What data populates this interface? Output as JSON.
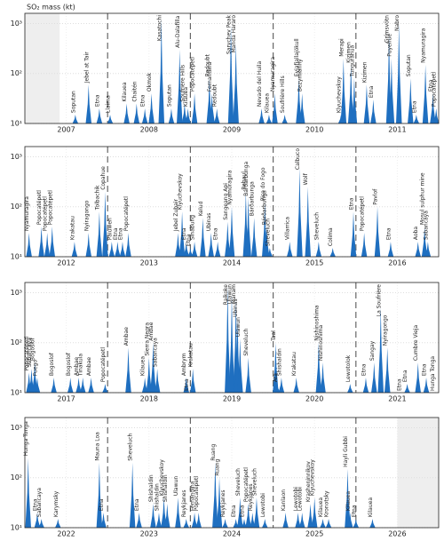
{
  "chart_data": [
    {
      "type": "area",
      "y_label": "SO₂ mass (kt)",
      "color": "#1f6fc0",
      "log_y": true,
      "grid": true,
      "xlim": [
        2007,
        2012
      ],
      "ylim": [
        10,
        1600
      ],
      "yticks": [
        {
          "value": 10,
          "label": "10¹"
        },
        {
          "value": 100,
          "label": "10²"
        },
        {
          "value": 1000,
          "label": "10³"
        }
      ],
      "xticks": [
        {
          "value": 2007.5,
          "label": "2007"
        },
        {
          "value": 2008.5,
          "label": "2008"
        },
        {
          "value": 2009.5,
          "label": "2009"
        },
        {
          "value": 2010.5,
          "label": "2010"
        },
        {
          "value": 2011.5,
          "label": "2011"
        }
      ],
      "year_lines": [
        2008,
        2009,
        2010,
        2011
      ],
      "shaded": [
        2007,
        2007.42
      ],
      "x": [
        2007.61,
        2007.77,
        2007.9,
        2008.03,
        2008.23,
        2008.35,
        2008.45,
        2008.53,
        2008.65,
        2008.77,
        2008.87,
        2008.93,
        2008.97,
        2009.05,
        2009.23,
        2009.26,
        2009.32,
        2009.49,
        2009.55,
        2009.86,
        2009.95,
        2010.02,
        2010.14,
        2010.31,
        2010.35,
        2010.82,
        2010.85,
        2010.94,
        2010.98,
        2011.13,
        2011.21,
        2011.4,
        2011.43,
        2011.52,
        2011.66,
        2011.73,
        2011.84,
        2011.93,
        2011.97
      ],
      "values": [
        15,
        60,
        20,
        15,
        25,
        25,
        20,
        40,
        1200,
        20,
        300,
        25,
        20,
        40,
        80,
        40,
        20,
        900,
        400,
        20,
        15,
        40,
        15,
        80,
        40,
        15,
        200,
        150,
        80,
        60,
        30,
        600,
        200,
        1000,
        80,
        15,
        150,
        40,
        20
      ],
      "labels": [
        "Soputan",
        "Jebel at Tair",
        "Etna",
        "Llaima",
        "Kilauea",
        "Chaitén",
        "Etna",
        "Okmok",
        "Kasatochi",
        "Soputan",
        "Alu-Dalafilla",
        "Soufrière Hills",
        "Kilauea",
        "Popocatépetl",
        "Redoubt",
        "Fernandina",
        "Redoubt",
        "Sarychev Peak",
        "Manda Hararo",
        "Nevado del Huila",
        "Kilauea",
        "Nyamuragira",
        "Soufrière Hills",
        "Eyjafjallajökull",
        "Bezymianny",
        "Klyuchevskoy",
        "Merapi",
        "Kizimen",
        "Tungurahua",
        "Kizimen",
        "Etna",
        "Grímsvötn",
        "Puyehue",
        "Nabro",
        "Soputan",
        "Etna",
        "Nyamuragira",
        "Etna",
        "Popocatépetl"
      ]
    },
    {
      "type": "area",
      "color": "#1f6fc0",
      "log_y": true,
      "grid": true,
      "xlim": [
        2012,
        2017
      ],
      "ylim": [
        10,
        1600
      ],
      "yticks": [
        {
          "value": 10,
          "label": "10¹"
        },
        {
          "value": 100,
          "label": "10²"
        },
        {
          "value": 1000,
          "label": "10³"
        }
      ],
      "xticks": [
        {
          "value": 2012.5,
          "label": "2012"
        },
        {
          "value": 2013.5,
          "label": "2013"
        },
        {
          "value": 2014.5,
          "label": "2014"
        },
        {
          "value": 2015.5,
          "label": "2015"
        },
        {
          "value": 2016.5,
          "label": "2016"
        }
      ],
      "year_lines": [
        2013,
        2014,
        2015,
        2016
      ],
      "x": [
        2012.05,
        2012.2,
        2012.27,
        2012.33,
        2012.6,
        2012.77,
        2012.9,
        2012.97,
        2013.05,
        2013.12,
        2013.18,
        2013.25,
        2013.85,
        2013.9,
        2013.95,
        2014.0,
        2014.05,
        2014.15,
        2014.25,
        2014.33,
        2014.45,
        2014.5,
        2014.67,
        2014.7,
        2014.77,
        2014.9,
        2014.92,
        2014.96,
        2015.2,
        2015.32,
        2015.42,
        2015.55,
        2015.72,
        2015.97,
        2016.1,
        2016.26,
        2016.42,
        2016.75,
        2016.83,
        2016.87
      ],
      "values": [
        30,
        40,
        30,
        40,
        20,
        30,
        80,
        200,
        20,
        20,
        20,
        30,
        30,
        80,
        20,
        15,
        20,
        60,
        30,
        20,
        50,
        100,
        200,
        150,
        60,
        120,
        40,
        15,
        20,
        600,
        250,
        20,
        15,
        80,
        30,
        100,
        20,
        20,
        40,
        20
      ],
      "labels": [
        "Nyamuragira",
        "Popocatépetl",
        "Popocatépetl",
        "Popocatépetl",
        "Krakatau",
        "Nyiragongo",
        "Tolbachik",
        "Copahue",
        "Paluweh",
        "Etna",
        "Etna",
        "Popocatépetl",
        "Jebel Zubair",
        "Klyuchevskoy",
        "Etna",
        "Etna",
        "Sinabung",
        "Kelud",
        "Ubinas",
        "Etna",
        "Sangeang Api",
        "Nyamuragira",
        "Rabaul",
        "Bárðarbunga",
        "Bárðarbunga",
        "Pico do Fogo",
        "Bárðarbunga",
        "Sheveluch",
        "Villarrica",
        "Calbuco",
        "Wolf",
        "Sheveluch",
        "Colima",
        "Etna",
        "Popocatépetl",
        "Pavlof",
        "Etna",
        "Aoba",
        "Mosul sulphur mine",
        "Sabancaya"
      ]
    },
    {
      "type": "area",
      "color": "#1f6fc0",
      "log_y": true,
      "grid": true,
      "xlim": [
        2017,
        2022
      ],
      "ylim": [
        10,
        1600
      ],
      "yticks": [
        {
          "value": 10,
          "label": "10¹"
        },
        {
          "value": 100,
          "label": "10²"
        },
        {
          "value": 1000,
          "label": "10³"
        }
      ],
      "xticks": [
        {
          "value": 2017.5,
          "label": "2017"
        },
        {
          "value": 2018.5,
          "label": "2018"
        },
        {
          "value": 2019.5,
          "label": "2019"
        },
        {
          "value": 2020.5,
          "label": "2020"
        },
        {
          "value": 2021.5,
          "label": "2021"
        }
      ],
      "year_lines": [
        2018,
        2019,
        2020,
        2021
      ],
      "x": [
        2017.05,
        2017.08,
        2017.12,
        2017.15,
        2017.35,
        2017.55,
        2017.65,
        2017.7,
        2017.8,
        2017.97,
        2018.25,
        2018.45,
        2018.5,
        2018.55,
        2018.6,
        2018.95,
        2018.98,
        2019.03,
        2019.45,
        2019.5,
        2019.55,
        2019.57,
        2019.6,
        2019.7,
        2020.03,
        2020.05,
        2020.1,
        2020.28,
        2020.55,
        2020.6,
        2020.93,
        2021.12,
        2021.22,
        2021.3,
        2021.38,
        2021.55,
        2021.62,
        2021.75,
        2021.85,
        2021.95
      ],
      "values": [
        25,
        30,
        40,
        20,
        20,
        20,
        20,
        20,
        20,
        15,
        80,
        20,
        50,
        100,
        30,
        20,
        10,
        30,
        1300,
        900,
        700,
        300,
        120,
        50,
        100,
        15,
        20,
        20,
        100,
        40,
        15,
        20,
        40,
        500,
        80,
        10,
        15,
        40,
        20,
        10
      ],
      "labels": [
        "Popocatépetl",
        "Sabancaya",
        "Bogoslof",
        "Fuego",
        "Bogoslof",
        "Bogoslof",
        "Ambae",
        "Tinakula",
        "Ambae",
        "Popocatépetl",
        "Ambae",
        "Kilauea",
        "Sierra Negra",
        "Ambae",
        "Sabancaya",
        "Ambrym",
        "Etna",
        "Krakatau",
        "Raikoke",
        "Ulawun",
        "Manam",
        "Ubinas",
        "Ulawun",
        "Sheveluch",
        "Taal",
        "Ata",
        "Shishaldin",
        "Krakatau",
        "Nishinoshima",
        "Nishinoshima",
        "Lewotolok",
        "Etna",
        "Sangay",
        "La Soufrière",
        "Nyiragongo",
        "Etna",
        "Etna",
        "Cumbre Vieja",
        "Etna",
        "Hunga Tonga"
      ]
    },
    {
      "type": "area",
      "color": "#1f6fc0",
      "log_y": true,
      "grid": true,
      "xlim": [
        2022,
        2027
      ],
      "ylim": [
        10,
        1600
      ],
      "yticks": [
        {
          "value": 10,
          "label": "10¹"
        },
        {
          "value": 100,
          "label": "10²"
        },
        {
          "value": 1000,
          "label": "10³"
        }
      ],
      "xticks": [
        {
          "value": 2022.5,
          "label": "2022"
        },
        {
          "value": 2023.5,
          "label": "2023"
        },
        {
          "value": 2024.5,
          "label": "2024"
        },
        {
          "value": 2025.5,
          "label": "2025"
        },
        {
          "value": 2026.5,
          "label": "2026"
        }
      ],
      "year_lines": [
        2023,
        2024,
        2025,
        2026
      ],
      "shaded": [
        2026.5,
        2027
      ],
      "x": [
        2022.04,
        2022.15,
        2022.2,
        2022.4,
        2022.9,
        2022.95,
        2023.3,
        2023.38,
        2023.55,
        2023.62,
        2023.68,
        2023.72,
        2023.85,
        2023.95,
        2024.05,
        2024.1,
        2024.3,
        2024.35,
        2024.42,
        2024.55,
        2024.6,
        2024.65,
        2024.7,
        2024.75,
        2024.8,
        2024.9,
        2025.15,
        2025.3,
        2025.35,
        2025.45,
        2025.5,
        2025.6,
        2025.67,
        2025.9,
        2025.93,
        2026.0,
        2026.2
      ],
      "values": [
        250,
        20,
        15,
        15,
        200,
        20,
        200,
        20,
        30,
        20,
        40,
        30,
        40,
        15,
        20,
        20,
        200,
        100,
        15,
        15,
        40,
        15,
        30,
        20,
        40,
        15,
        20,
        20,
        20,
        30,
        40,
        15,
        15,
        150,
        20,
        15,
        15
      ],
      "labels": [
        "Hunga Tonga",
        "Etna",
        "Sabancaya",
        "Karymsky",
        "Mauna Loa",
        "Etna",
        "Sheveluch",
        "Etna",
        "Shishaldin",
        "Shishaldin",
        "Klyuchevskoy",
        "Shishaldin",
        "Ulawun",
        "Reykjanes",
        "Fernandina",
        "Popocatépetl",
        "Ruang",
        "Ruang",
        "Reykjanes",
        "Etna",
        "Sheveluch",
        "Etna",
        "Popocatépetl",
        "Reykjanes",
        "Sheveluch",
        "Lewotobi",
        "Kanlaon",
        "Lewotobi",
        "Lewotobi",
        "Krasheninnikov",
        "Klyuchevskoy",
        "Kilauea",
        "Kronotsky",
        "Hayli Gubbi",
        "Kilauea",
        "Etna",
        "Kilauea"
      ]
    }
  ]
}
